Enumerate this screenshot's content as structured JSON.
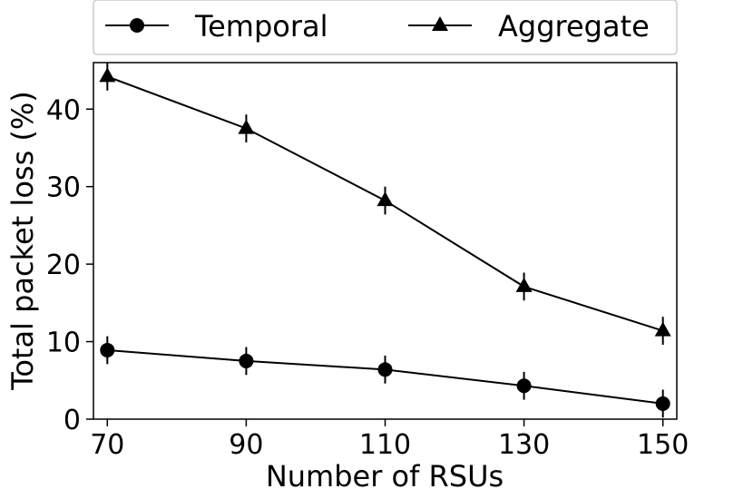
{
  "chart_data": {
    "type": "line",
    "title": "",
    "xlabel": "Number of RSUs",
    "ylabel": "Total packet loss (%)",
    "x": [
      70,
      90,
      110,
      130,
      150
    ],
    "xlim": [
      68,
      152
    ],
    "ylim": [
      0,
      46
    ],
    "xticks": [
      70,
      90,
      110,
      130,
      150
    ],
    "yticks": [
      0,
      10,
      20,
      30,
      40
    ],
    "grid": false,
    "legend_position": "top-center",
    "series": [
      {
        "name": "Temporal",
        "marker": "circle",
        "color": "#000000",
        "values": [
          8.9,
          7.5,
          6.4,
          4.3,
          2.0
        ],
        "error": [
          1.8,
          1.8,
          1.8,
          1.8,
          1.8
        ]
      },
      {
        "name": "Aggregate",
        "marker": "triangle",
        "color": "#000000",
        "values": [
          44.2,
          37.5,
          28.2,
          17.1,
          11.4
        ],
        "error": [
          1.8,
          1.8,
          1.8,
          1.8,
          1.8
        ]
      }
    ]
  }
}
